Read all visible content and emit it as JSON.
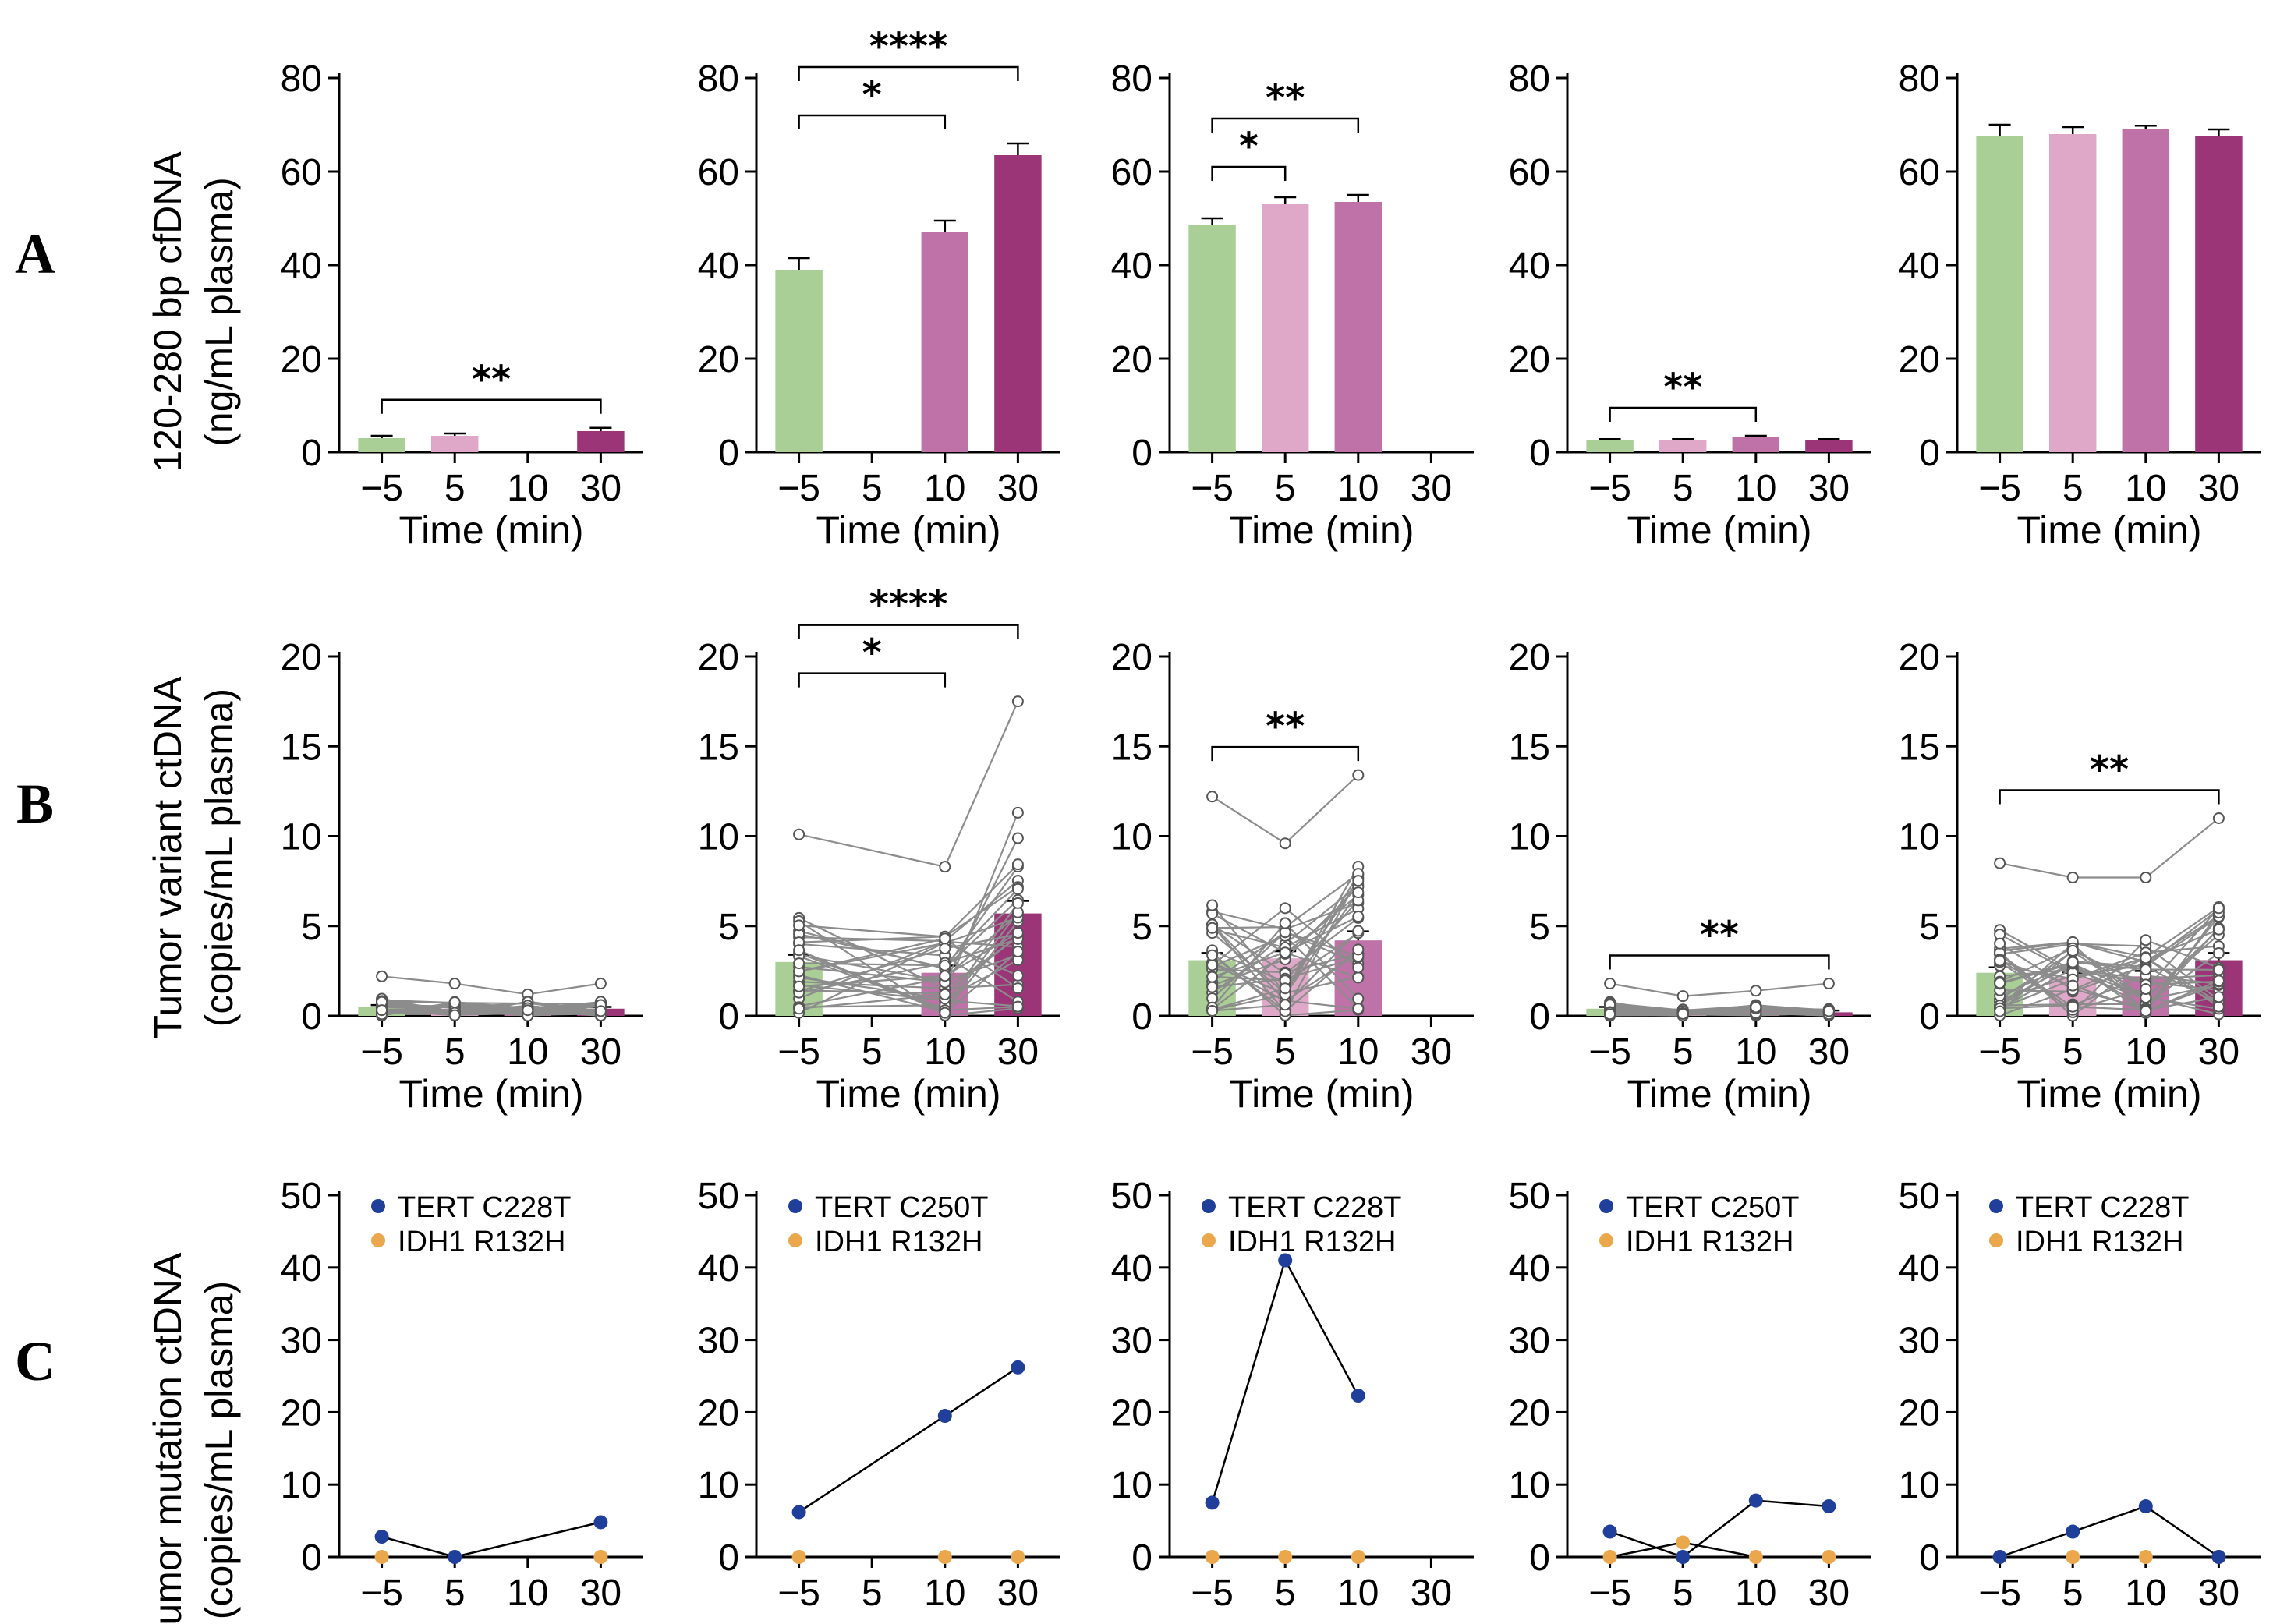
{
  "colors": {
    "t_minus5": "#a9cf97",
    "t_5": "#e0a8c8",
    "t_10": "#bf72a8",
    "t_30": "#9c3478",
    "line_gray": "#8c8c8c",
    "tert": "#1f3f9a",
    "idh1": "#eaa74c"
  },
  "row_labels": [
    "A",
    "B",
    "C"
  ],
  "chart_data": [
    {
      "row": "A",
      "type": "bar",
      "ylabel": [
        "120-280 bp cfDNA",
        "(ng/mL plasma)"
      ],
      "xlabel": "Time (min)",
      "categories": [
        "−5",
        "5",
        "10",
        "30"
      ],
      "ylim": [
        0,
        80
      ],
      "yticks": [
        "0",
        "20",
        "40",
        "60",
        "80"
      ],
      "panels": [
        {
          "values": [
            3,
            3.5,
            null,
            4.5
          ],
          "errors": [
            0.5,
            0.5,
            null,
            0.7
          ],
          "sig": [
            {
              "from": 0,
              "to": 3,
              "label": "**"
            }
          ]
        },
        {
          "values": [
            39,
            null,
            47,
            63.5
          ],
          "errors": [
            2.5,
            null,
            2.5,
            2.5
          ],
          "sig": [
            {
              "from": 0,
              "to": 2,
              "label": "*"
            },
            {
              "from": 0,
              "to": 3,
              "label": "****"
            }
          ]
        },
        {
          "values": [
            48.5,
            53,
            53.5,
            null
          ],
          "errors": [
            1.5,
            1.5,
            1.5,
            null
          ],
          "sig": [
            {
              "from": 0,
              "to": 1,
              "label": "*"
            },
            {
              "from": 0,
              "to": 2,
              "label": "**"
            }
          ]
        },
        {
          "values": [
            2.5,
            2.5,
            3.2,
            2.5
          ],
          "errors": [
            0.3,
            0.3,
            0.3,
            0.3
          ],
          "sig": [
            {
              "from": 0,
              "to": 2,
              "label": "**"
            }
          ]
        },
        {
          "values": [
            67.5,
            68,
            69,
            67.5
          ],
          "errors": [
            2.5,
            1.5,
            0.8,
            1.5
          ],
          "sig": []
        }
      ]
    },
    {
      "row": "B",
      "type": "bar+paired-points",
      "ylabel": [
        "Tumor variant ctDNA",
        "(copies/mL plasma)"
      ],
      "xlabel": "Time (min)",
      "categories": [
        "−5",
        "5",
        "10",
        "30"
      ],
      "ylim": [
        0,
        20
      ],
      "yticks": [
        "0",
        "5",
        "10",
        "15",
        "20"
      ],
      "panels": [
        {
          "values": [
            0.5,
            0.4,
            0.4,
            0.4
          ],
          "errors": [
            0.1,
            0.1,
            0.1,
            0.1
          ],
          "max": [
            2.2,
            1.8,
            1.2,
            1.8
          ],
          "sig": []
        },
        {
          "values": [
            3.0,
            null,
            2.4,
            5.7
          ],
          "errors": [
            0.4,
            null,
            0.4,
            0.7
          ],
          "max": [
            10.1,
            null,
            8.3,
            17.5
          ],
          "sig": [
            {
              "from": 0,
              "to": 2,
              "label": "*"
            },
            {
              "from": 0,
              "to": 3,
              "label": "****"
            }
          ]
        },
        {
          "values": [
            3.1,
            3.2,
            4.2,
            null
          ],
          "errors": [
            0.4,
            0.4,
            0.5,
            null
          ],
          "max": [
            12.2,
            9.6,
            13.4,
            null
          ],
          "sig": [
            {
              "from": 0,
              "to": 2,
              "label": "**"
            }
          ]
        },
        {
          "values": [
            0.4,
            0.2,
            0.3,
            0.2
          ],
          "errors": [
            0.1,
            0.1,
            0.1,
            0.1
          ],
          "max": [
            1.8,
            1.1,
            1.4,
            1.8
          ],
          "sig": [
            {
              "from": 0,
              "to": 3,
              "label": "**"
            }
          ]
        },
        {
          "values": [
            2.4,
            2.1,
            2.2,
            3.1
          ],
          "errors": [
            0.3,
            0.3,
            0.3,
            0.4
          ],
          "max": [
            8.5,
            7.7,
            7.7,
            11.0
          ],
          "sig": [
            {
              "from": 0,
              "to": 3,
              "label": "**"
            }
          ]
        }
      ]
    },
    {
      "row": "C",
      "type": "line",
      "ylabel": [
        "Tumor mutation ctDNA",
        "(copies/mL plasma)"
      ],
      "categories": [
        "−5",
        "5",
        "10",
        "30"
      ],
      "ylim": [
        0,
        50
      ],
      "yticks": [
        "0",
        "10",
        "20",
        "30",
        "40",
        "50"
      ],
      "panels": [
        {
          "legend": [
            "TERT C228T",
            "IDH1 R132H"
          ],
          "tert": [
            2.8,
            0,
            null,
            4.8
          ],
          "idh1": [
            0,
            null,
            null,
            0
          ]
        },
        {
          "legend": [
            "TERT C250T",
            "IDH1 R132H"
          ],
          "tert": [
            6.2,
            null,
            19.5,
            26.2
          ],
          "idh1": [
            0,
            null,
            0,
            0
          ]
        },
        {
          "legend": [
            "TERT C228T",
            "IDH1 R132H"
          ],
          "tert": [
            7.5,
            41.0,
            22.3,
            null
          ],
          "idh1": [
            0,
            0,
            0,
            null
          ]
        },
        {
          "legend": [
            "TERT C250T",
            "IDH1 R132H"
          ],
          "tert": [
            3.5,
            0,
            7.8,
            7.0
          ],
          "idh1": [
            0,
            2.0,
            0,
            0
          ]
        },
        {
          "legend": [
            "TERT C228T",
            "IDH1 R132H"
          ],
          "tert": [
            0,
            3.5,
            7.0,
            0
          ],
          "idh1": [
            0,
            0,
            0,
            0
          ]
        }
      ]
    }
  ]
}
